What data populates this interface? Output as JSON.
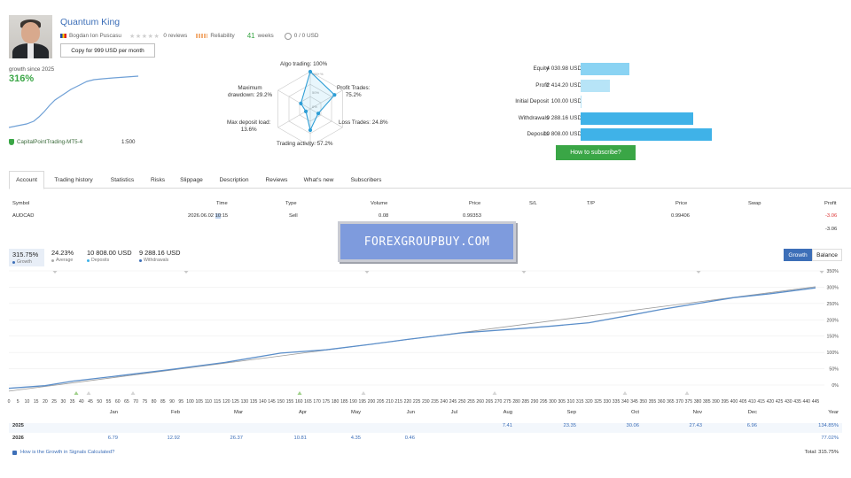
{
  "provider": {
    "name": "Quantum King",
    "author": "Bogdan Ion Puscasu",
    "reviews": "0 reviews",
    "reliability_label": "Reliability",
    "weeks_value": "41",
    "weeks_label": "weeks",
    "subscribers_funds": "0 / 0 USD",
    "copy_button": "Copy for 999 USD per month",
    "growth_since": "growth since 2025",
    "growth_value": "316%",
    "server": "CapitalPointTrading-MT5-4",
    "leverage": "1:500"
  },
  "radar": {
    "algo": "Algo trading: 100%",
    "profit": "Profit Trades:\n75.2%",
    "loss": "Loss Trades: 24.8%",
    "activity": "Trading activity: 57.2%",
    "deposit_load": "Max deposit load:\n13.6%",
    "drawdown": "Maximum\ndrawdown: 29.2%",
    "levels": [
      "100+%",
      "50%",
      "0%"
    ],
    "values": [
      1.0,
      0.752,
      0.248,
      0.572,
      0.136,
      0.292
    ]
  },
  "kpis": [
    {
      "label": "Equity",
      "value": "4 030.98 USD",
      "fraction": 0.373,
      "color": "#8ad3f3"
    },
    {
      "label": "Profit",
      "value": "2 414.20 USD",
      "fraction": 0.223,
      "color": "#b7e4f7"
    },
    {
      "label": "Initial Deposit",
      "value": "100.00 USD",
      "fraction": 0.009,
      "color": "#b7e4f7"
    },
    {
      "label": "Withdrawals",
      "value": "9 288.16 USD",
      "fraction": 0.859,
      "color": "#3fb2e8"
    },
    {
      "label": "Deposits",
      "value": "10 808.00 USD",
      "fraction": 1.0,
      "color": "#3fb2e8"
    }
  ],
  "subscribe_button": "How to subscribe?",
  "tabs": [
    "Account",
    "Trading history",
    "Statistics",
    "Risks",
    "Slippage",
    "Description",
    "Reviews",
    "What's new",
    "Subscribers"
  ],
  "trades": {
    "headers": [
      "Symbol",
      "Time",
      "Type",
      "Volume",
      "Price",
      "S/L",
      "T/P",
      "Price",
      "Swap",
      "Profit"
    ],
    "row": {
      "symbol": "AUDCAD",
      "time_a": "2026.06.02 ",
      "time_b": "10",
      "time_c": ":15",
      "type": "Sell",
      "volume": "0.08",
      "price": "0.99353",
      "sl": "",
      "tp": "",
      "price2": "0.99406",
      "swap": "",
      "profit": "-3.06"
    },
    "total": "-3.06"
  },
  "watermark": "FOREXGROUPBUY.COM",
  "stats": [
    {
      "value": "315.75%",
      "label": "Growth",
      "color": "#3d6fb8"
    },
    {
      "value": "24.23%",
      "label": "Average",
      "color": "#aaaaaa"
    },
    {
      "value": "10 808.00 USD",
      "label": "Deposits",
      "color": "#3fb2e8"
    },
    {
      "value": "9 288.16 USD",
      "label": "Withdrawals",
      "color": "#3d6fb8"
    }
  ],
  "toggles": {
    "growth": "Growth",
    "balance": "Balance"
  },
  "chart": {
    "y_ticks": [
      "350%",
      "300%",
      "250%",
      "200%",
      "150%",
      "100%",
      "50%",
      "0%"
    ],
    "x_ticks": [
      "0",
      "5",
      "10",
      "15",
      "20",
      "25",
      "30",
      "35",
      "40",
      "45",
      "50",
      "55",
      "60",
      "65",
      "70",
      "75",
      "80",
      "85",
      "90",
      "95",
      "100",
      "105",
      "110",
      "115",
      "120",
      "125",
      "130",
      "135",
      "140",
      "145",
      "150",
      "155",
      "160",
      "165",
      "170",
      "175",
      "180",
      "185",
      "190",
      "195",
      "200",
      "205",
      "210",
      "215",
      "220",
      "225",
      "230",
      "235",
      "240",
      "245",
      "250",
      "255",
      "260",
      "265",
      "270",
      "275",
      "280",
      "285",
      "290",
      "295",
      "300",
      "305",
      "310",
      "315",
      "320",
      "325",
      "330",
      "335",
      "340",
      "345",
      "350",
      "355",
      "360",
      "365",
      "370",
      "375",
      "380",
      "385",
      "390",
      "395",
      "400",
      "405",
      "410",
      "415",
      "420",
      "425",
      "430",
      "435",
      "440",
      "445"
    ],
    "line_color": "#5b8ec9",
    "trend_color": "#9a9a9a"
  },
  "chart_data": {
    "type": "line",
    "xlabel": "",
    "ylabel": "",
    "ylim": [
      0,
      350
    ],
    "xlim": [
      0,
      445
    ],
    "series": [
      {
        "values": [
          [
            0,
            -10
          ],
          [
            20,
            -2
          ],
          [
            35,
            12
          ],
          [
            60,
            28
          ],
          [
            90,
            48
          ],
          [
            120,
            70
          ],
          [
            150,
            98
          ],
          [
            175,
            108
          ],
          [
            200,
            125
          ],
          [
            220,
            140
          ],
          [
            250,
            160
          ],
          [
            275,
            170
          ],
          [
            300,
            181
          ],
          [
            320,
            191
          ],
          [
            340,
            211
          ],
          [
            360,
            232
          ],
          [
            380,
            250
          ],
          [
            400,
            268
          ],
          [
            420,
            280
          ],
          [
            445,
            298
          ]
        ]
      },
      {
        "values": [
          [
            0,
            -5
          ],
          [
            445,
            315
          ]
        ]
      }
    ]
  },
  "monthly": {
    "months": [
      "Jan",
      "Feb",
      "Mar",
      "Apr",
      "May",
      "Jun",
      "Jul",
      "Aug",
      "Sep",
      "Oct",
      "Nov",
      "Dec",
      "Year"
    ],
    "rows": [
      {
        "year": "2025",
        "values": [
          "",
          "",
          "",
          "",
          "",
          "",
          "",
          "7.41",
          "23.35",
          "30.06",
          "27.43",
          "6.96",
          "134.85%"
        ]
      },
      {
        "year": "2026",
        "values": [
          "6.79",
          "12.92",
          "26.37",
          "10.81",
          "4.35",
          "0.46",
          "",
          "",
          "",
          "",
          "",
          "",
          "77.02%"
        ]
      }
    ]
  },
  "help_link": "How is the Growth in Signals Calculated?",
  "total": "Total: 315.75%"
}
